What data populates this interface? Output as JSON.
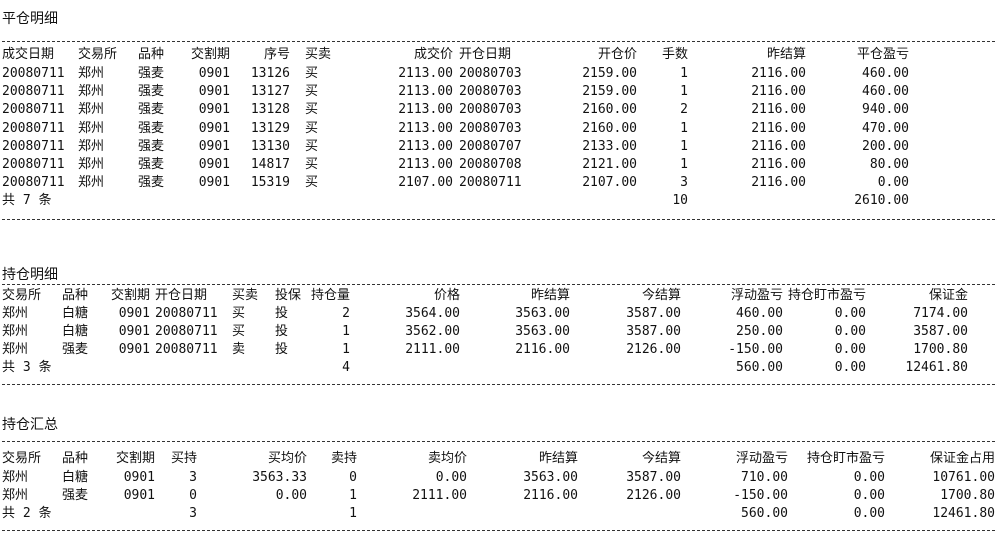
{
  "sections": [
    {
      "title": "平仓明细",
      "headers": [
        "成交日期",
        "交易所",
        "品种",
        "交割期",
        "序号",
        "买卖",
        "成交价",
        "开仓日期",
        "开仓价",
        "手数",
        "昨结算",
        "平仓盈亏"
      ],
      "rows": [
        [
          "20080711",
          "郑州",
          "强麦",
          "0901",
          "13126",
          "买",
          "2113.00",
          "20080703",
          "2159.00",
          "1",
          "2116.00",
          "460.00"
        ],
        [
          "20080711",
          "郑州",
          "强麦",
          "0901",
          "13127",
          "买",
          "2113.00",
          "20080703",
          "2159.00",
          "1",
          "2116.00",
          "460.00"
        ],
        [
          "20080711",
          "郑州",
          "强麦",
          "0901",
          "13128",
          "买",
          "2113.00",
          "20080703",
          "2160.00",
          "2",
          "2116.00",
          "940.00"
        ],
        [
          "20080711",
          "郑州",
          "强麦",
          "0901",
          "13129",
          "买",
          "2113.00",
          "20080703",
          "2160.00",
          "1",
          "2116.00",
          "470.00"
        ],
        [
          "20080711",
          "郑州",
          "强麦",
          "0901",
          "13130",
          "买",
          "2113.00",
          "20080707",
          "2133.00",
          "1",
          "2116.00",
          "200.00"
        ],
        [
          "20080711",
          "郑州",
          "强麦",
          "0901",
          "14817",
          "买",
          "2113.00",
          "20080708",
          "2121.00",
          "1",
          "2116.00",
          "80.00"
        ],
        [
          "20080711",
          "郑州",
          "强麦",
          "0901",
          "15319",
          "买",
          "2107.00",
          "20080711",
          "2107.00",
          "3",
          "2116.00",
          "0.00"
        ]
      ],
      "total": [
        "共 7 条",
        "",
        "",
        "",
        "",
        "",
        "",
        "",
        "",
        "10",
        "",
        "2610.00"
      ]
    },
    {
      "title": "持仓明细",
      "headers": [
        "交易所",
        "品种",
        "交割期",
        "开仓日期",
        "买卖",
        "投保",
        "持仓量",
        "价格",
        "昨结算",
        "今结算",
        "浮动盈亏",
        "持仓盯市盈亏",
        "保证金"
      ],
      "rows": [
        [
          "郑州",
          "白糖",
          "0901",
          "20080711",
          "买",
          "投",
          "2",
          "3564.00",
          "3563.00",
          "3587.00",
          "460.00",
          "0.00",
          "7174.00"
        ],
        [
          "郑州",
          "白糖",
          "0901",
          "20080711",
          "买",
          "投",
          "1",
          "3562.00",
          "3563.00",
          "3587.00",
          "250.00",
          "0.00",
          "3587.00"
        ],
        [
          "郑州",
          "强麦",
          "0901",
          "20080711",
          "卖",
          "投",
          "1",
          "2111.00",
          "2116.00",
          "2126.00",
          "-150.00",
          "0.00",
          "1700.80"
        ]
      ],
      "total": [
        "共 3 条",
        "",
        "",
        "",
        "",
        "",
        "4",
        "",
        "",
        "",
        "560.00",
        "0.00",
        "12461.80"
      ]
    },
    {
      "title": "持仓汇总",
      "headers": [
        "交易所",
        "品种",
        "交割期",
        "买持",
        "买均价",
        "卖持",
        "卖均价",
        "昨结算",
        "今结算",
        "浮动盈亏",
        "持仓盯市盈亏",
        "保证金占用"
      ],
      "rows": [
        [
          "郑州",
          "白糖",
          "0901",
          "3",
          "3563.33",
          "0",
          "0.00",
          "3563.00",
          "3587.00",
          "710.00",
          "0.00",
          "10761.00"
        ],
        [
          "郑州",
          "强麦",
          "0901",
          "0",
          "0.00",
          "1",
          "2111.00",
          "2116.00",
          "2126.00",
          "-150.00",
          "0.00",
          "1700.80"
        ]
      ],
      "total": [
        "共 2 条",
        "",
        "",
        "3",
        "",
        "1",
        "",
        "",
        "",
        "560.00",
        "0.00",
        "12461.80"
      ]
    }
  ]
}
